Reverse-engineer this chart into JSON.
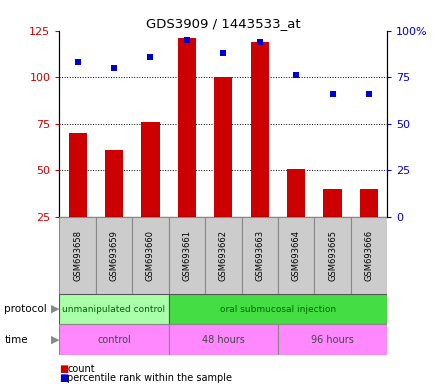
{
  "title": "GDS3909 / 1443533_at",
  "samples": [
    "GSM693658",
    "GSM693659",
    "GSM693660",
    "GSM693661",
    "GSM693662",
    "GSM693663",
    "GSM693664",
    "GSM693665",
    "GSM693666"
  ],
  "counts": [
    70,
    61,
    76,
    121,
    100,
    119,
    51,
    40,
    40
  ],
  "percentile_ranks": [
    83,
    80,
    86,
    95,
    88,
    94,
    76,
    66,
    66
  ],
  "ylim_left": [
    25,
    125
  ],
  "ylim_right": [
    0,
    100
  ],
  "yticks_left": [
    25,
    50,
    75,
    100,
    125
  ],
  "yticks_right": [
    0,
    25,
    50,
    75,
    100
  ],
  "yticklabels_right": [
    "0",
    "25",
    "50",
    "75",
    "100%"
  ],
  "bar_color": "#cc0000",
  "scatter_color": "#0000cc",
  "protocol_groups": [
    {
      "label": "unmanipulated control",
      "start": 0,
      "end": 3,
      "color": "#aaffaa"
    },
    {
      "label": "oral submucosal injection",
      "start": 3,
      "end": 9,
      "color": "#44dd44"
    }
  ],
  "time_groups": [
    {
      "label": "control",
      "start": 0,
      "end": 3
    },
    {
      "label": "48 hours",
      "start": 3,
      "end": 6
    },
    {
      "label": "96 hours",
      "start": 6,
      "end": 9
    }
  ],
  "time_color": "#ff88ff",
  "sample_box_color": "#cccccc",
  "left_label_color": "#cc0000",
  "right_label_color": "#0000cc",
  "grid_dotted_at": [
    50,
    75,
    100
  ],
  "bar_bottom": 25
}
